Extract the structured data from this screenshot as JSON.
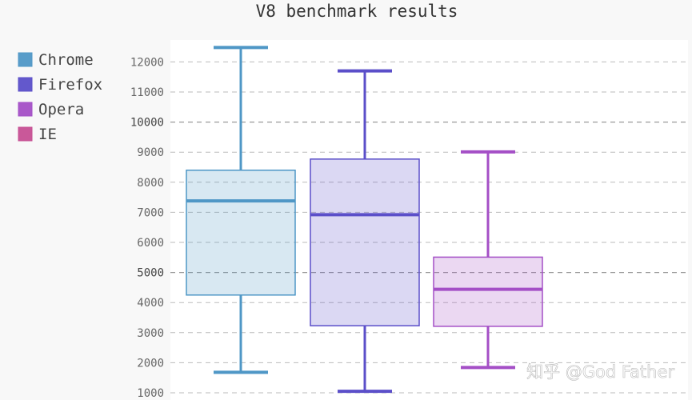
{
  "chart_data": {
    "type": "box",
    "title": "V8 benchmark results",
    "xlabel": "",
    "ylabel": "",
    "ylim": [
      1000,
      12650
    ],
    "y_ticks": [
      1000,
      2000,
      3000,
      4000,
      5000,
      6000,
      7000,
      8000,
      9000,
      10000,
      11000,
      12000
    ],
    "y_major_ticks": [
      5000,
      10000
    ],
    "grid": "horizontal dashed",
    "legend_position": "left",
    "series": [
      {
        "name": "Chrome",
        "color": "#4f97c6",
        "min": 1680,
        "q1": 4250,
        "median": 7380,
        "q3": 8400,
        "max": 12480
      },
      {
        "name": "Firefox",
        "color": "#5b4fc9",
        "min": 1050,
        "q1": 3230,
        "median": 6920,
        "q3": 8770,
        "max": 11700
      },
      {
        "name": "Opera",
        "color": "#a44fc6",
        "min": 1840,
        "q1": 3210,
        "median": 4440,
        "q3": 5510,
        "max": 9010
      },
      {
        "name": "IE",
        "color": "#c64f93"
      }
    ]
  },
  "watermark": "知乎 @God Father"
}
